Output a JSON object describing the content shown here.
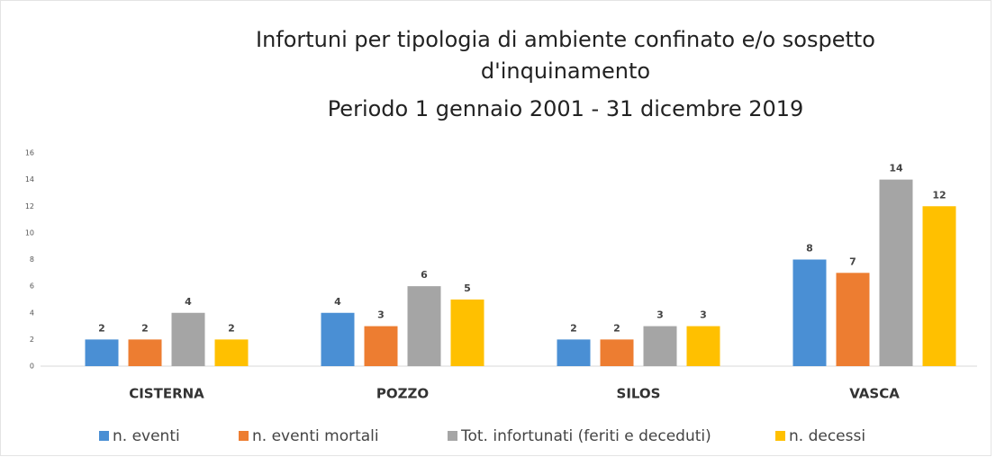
{
  "chart_data": {
    "type": "bar",
    "title": [
      "Infortuni per tipologia di ambiente confinato e/o sospetto",
      "d'inquinamento"
    ],
    "subtitle": "Periodo 1 gennaio 2001 - 31 dicembre 2019",
    "categories": [
      "CISTERNA",
      "POZZO",
      "SILOS",
      "VASCA"
    ],
    "series": [
      {
        "name": "n. eventi",
        "color": "#4a8fd4",
        "values": [
          2,
          4,
          2,
          8
        ]
      },
      {
        "name": "n. eventi mortali",
        "color": "#ed7d31",
        "values": [
          2,
          3,
          2,
          7
        ]
      },
      {
        "name": "Tot.  infortunati (feriti e deceduti)",
        "color": "#a5a5a5",
        "values": [
          4,
          6,
          3,
          14
        ]
      },
      {
        "name": "n. decessi",
        "color": "#ffc000",
        "values": [
          2,
          5,
          3,
          12
        ]
      }
    ],
    "ylim": [
      0,
      16
    ],
    "yticks": [
      0,
      2,
      4,
      6,
      8,
      10,
      12,
      14,
      16
    ],
    "grid": false,
    "legend": "bottom"
  }
}
